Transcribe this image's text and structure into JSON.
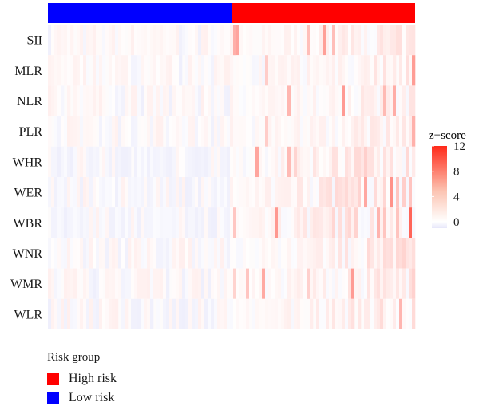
{
  "chart_data": {
    "type": "heatmap",
    "title": "",
    "rows": [
      "SII",
      "MLR",
      "NLR",
      "PLR",
      "WHR",
      "WER",
      "WBR",
      "WNR",
      "WMR",
      "WLR"
    ],
    "column_annotation": {
      "segments": [
        {
          "group": "Low risk",
          "fraction": 0.5
        },
        {
          "group": "High risk",
          "fraction": 0.5
        }
      ]
    },
    "colorbar": {
      "title": "z−score",
      "ticks": [
        "12",
        "8",
        "4",
        "0"
      ],
      "min": -1,
      "max": 12,
      "low_color": "#e6e6fa",
      "mid_color": "#ffffff",
      "high_color": "#ff2a1a"
    },
    "grid": false
  },
  "legend": {
    "title": "Risk group",
    "items": [
      {
        "label": "High risk",
        "color": "#ff0000"
      },
      {
        "label": "Low risk",
        "color": "#0000ff"
      }
    ]
  }
}
